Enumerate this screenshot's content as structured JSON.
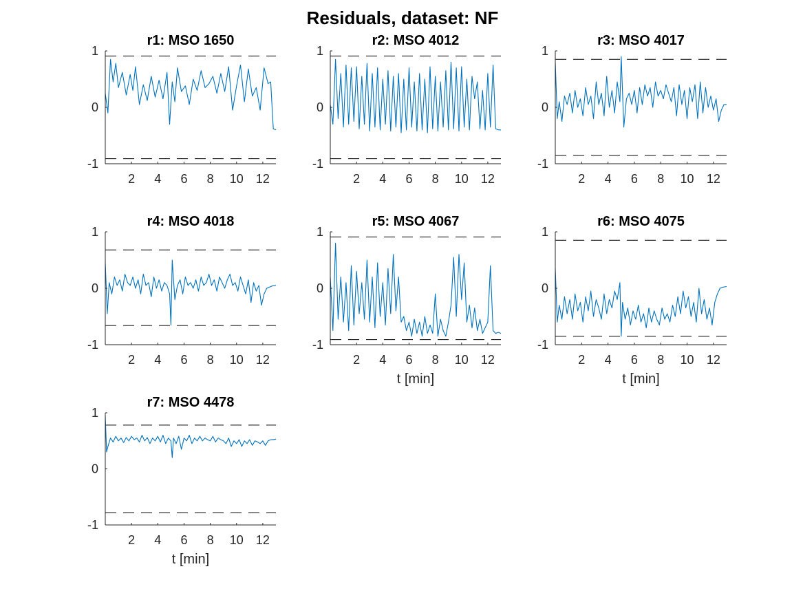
{
  "figure": {
    "title": "Residuals, dataset: NF"
  },
  "chart_data": [
    {
      "type": "line",
      "title": "r1: MSO 1650",
      "xlabel": "",
      "xlim": [
        0,
        13
      ],
      "ylim": [
        -1,
        1
      ],
      "xticks": [
        2,
        4,
        6,
        8,
        10,
        12
      ],
      "yticks": [
        -1,
        0,
        1
      ],
      "thresholds": [
        0.91,
        -0.91
      ],
      "grid": false,
      "series": [
        {
          "color": "#0072bd",
          "x": [
            0,
            0.2,
            0.4,
            0.6,
            0.8,
            1,
            1.3,
            1.6,
            1.9,
            2.1,
            2.3,
            2.6,
            2.9,
            3.2,
            3.5,
            3.8,
            4.1,
            4.4,
            4.7,
            4.9,
            5.1,
            5.3,
            5.5,
            5.8,
            6.1,
            6.4,
            6.7,
            7,
            7.3,
            7.6,
            7.9,
            8.2,
            8.5,
            8.8,
            9.1,
            9.4,
            9.7,
            10,
            10.3,
            10.6,
            10.9,
            11.2,
            11.5,
            11.8,
            12.1,
            12.4,
            12.6,
            12.8,
            13
          ],
          "y": [
            0.25,
            -0.1,
            0.85,
            0.45,
            0.78,
            0.35,
            0.62,
            0.22,
            0.58,
            0.3,
            0.72,
            0.05,
            0.4,
            0.12,
            0.55,
            0.18,
            0.48,
            0.15,
            0.62,
            -0.3,
            0.45,
            0.1,
            0.7,
            0.28,
            0.38,
            0.05,
            0.5,
            0.3,
            0.65,
            0.35,
            0.42,
            0.55,
            0.25,
            0.6,
            0.28,
            0.72,
            -0.05,
            0.38,
            0.75,
            0.1,
            0.68,
            0.2,
            0.35,
            -0.05,
            0.7,
            0.42,
            0.45,
            -0.38,
            -0.4
          ]
        }
      ]
    },
    {
      "type": "line",
      "title": "r2: MSO 4012",
      "xlabel": "",
      "xlim": [
        0,
        13
      ],
      "ylim": [
        -1,
        1
      ],
      "xticks": [
        2,
        4,
        6,
        8,
        10,
        12
      ],
      "yticks": [
        -1,
        0,
        1
      ],
      "thresholds": [
        0.91,
        -0.91
      ],
      "grid": false,
      "series": [
        {
          "color": "#0072bd",
          "x": [
            0,
            0.2,
            0.4,
            0.6,
            0.8,
            1,
            1.2,
            1.4,
            1.6,
            1.8,
            2,
            2.2,
            2.4,
            2.6,
            2.8,
            3,
            3.2,
            3.4,
            3.6,
            3.8,
            4,
            4.2,
            4.4,
            4.6,
            4.8,
            5,
            5.2,
            5.4,
            5.6,
            5.8,
            6,
            6.2,
            6.4,
            6.6,
            6.8,
            7,
            7.2,
            7.4,
            7.6,
            7.8,
            8,
            8.2,
            8.4,
            8.6,
            8.8,
            9,
            9.2,
            9.4,
            9.6,
            9.8,
            10,
            10.2,
            10.4,
            10.6,
            10.8,
            11,
            11.2,
            11.4,
            11.6,
            11.8,
            12,
            12.2,
            12.4,
            12.6,
            12.8,
            13
          ],
          "y": [
            0.05,
            -0.3,
            0.85,
            -0.2,
            0.6,
            -0.35,
            0.75,
            -0.3,
            0.7,
            -0.25,
            0.72,
            -0.38,
            0.55,
            -0.3,
            0.78,
            -0.42,
            0.6,
            -0.35,
            0.7,
            -0.4,
            0.5,
            -0.3,
            0.65,
            -0.42,
            0.55,
            -0.35,
            0.6,
            -0.45,
            0.5,
            -0.4,
            0.7,
            -0.35,
            0.45,
            -0.42,
            0.6,
            -0.4,
            0.5,
            -0.45,
            0.72,
            -0.38,
            0.55,
            -0.42,
            0.45,
            -0.35,
            0.65,
            -0.4,
            0.8,
            -0.38,
            0.7,
            -0.42,
            0.72,
            -0.35,
            0.5,
            -0.4,
            0.55,
            0.15,
            0.45,
            -0.38,
            0.3,
            -0.4,
            0.6,
            -0.35,
            0.75,
            -0.38,
            -0.4,
            -0.4
          ]
        }
      ]
    },
    {
      "type": "line",
      "title": "r3: MSO 4017",
      "xlabel": "",
      "xlim": [
        0,
        13
      ],
      "ylim": [
        -1,
        1
      ],
      "xticks": [
        2,
        4,
        6,
        8,
        10,
        12
      ],
      "yticks": [
        -1,
        0,
        1
      ],
      "thresholds": [
        0.85,
        -0.85
      ],
      "grid": false,
      "series": [
        {
          "color": "#0072bd",
          "x": [
            0,
            0.15,
            0.3,
            0.5,
            0.7,
            0.9,
            1.1,
            1.3,
            1.5,
            1.7,
            1.9,
            2.1,
            2.3,
            2.5,
            2.7,
            2.9,
            3.1,
            3.3,
            3.5,
            3.7,
            3.9,
            4.1,
            4.3,
            4.5,
            4.7,
            4.9,
            5,
            5.2,
            5.4,
            5.6,
            5.8,
            6,
            6.2,
            6.4,
            6.6,
            6.8,
            7,
            7.2,
            7.4,
            7.6,
            7.8,
            8,
            8.2,
            8.4,
            8.6,
            8.8,
            9,
            9.2,
            9.4,
            9.6,
            9.8,
            10,
            10.2,
            10.4,
            10.6,
            10.8,
            11,
            11.2,
            11.4,
            11.6,
            11.8,
            12,
            12.2,
            12.4,
            12.6,
            12.8,
            13
          ],
          "y": [
            0.8,
            -0.2,
            0.1,
            -0.25,
            0.2,
            0.05,
            0.25,
            -0.1,
            0.3,
            0.0,
            0.15,
            -0.15,
            0.35,
            0.05,
            0.2,
            -0.2,
            0.45,
            0.05,
            0.25,
            -0.15,
            0.55,
            0.0,
            0.3,
            -0.1,
            0.45,
            0.1,
            0.9,
            -0.35,
            0.15,
            0.25,
            0.05,
            0.3,
            -0.1,
            0.35,
            0.05,
            0.4,
            0.2,
            0.35,
            0.0,
            0.45,
            0.2,
            0.3,
            0.15,
            0.4,
            0.25,
            0.1,
            0.35,
            -0.15,
            0.4,
            0.05,
            0.3,
            -0.2,
            0.35,
            0.1,
            0.4,
            -0.2,
            0.45,
            -0.1,
            0.35,
            0.0,
            0.2,
            -0.05,
            0.15,
            -0.25,
            -0.05,
            0.05,
            0.05
          ]
        }
      ]
    },
    {
      "type": "line",
      "title": "r4: MSO 4018",
      "xlabel": "",
      "xlim": [
        0,
        13
      ],
      "ylim": [
        -1,
        1
      ],
      "xticks": [
        2,
        4,
        6,
        8,
        10,
        12
      ],
      "yticks": [
        -1,
        0,
        1
      ],
      "thresholds": [
        0.68,
        -0.66
      ],
      "grid": false,
      "series": [
        {
          "color": "#0072bd",
          "x": [
            0,
            0.15,
            0.3,
            0.5,
            0.7,
            0.9,
            1.1,
            1.3,
            1.5,
            1.7,
            1.9,
            2.1,
            2.3,
            2.5,
            2.7,
            2.9,
            3.1,
            3.3,
            3.5,
            3.7,
            3.9,
            4.1,
            4.3,
            4.5,
            4.7,
            4.9,
            5.0,
            5.1,
            5.3,
            5.5,
            5.7,
            5.9,
            6.1,
            6.3,
            6.5,
            6.7,
            6.9,
            7.1,
            7.3,
            7.5,
            7.7,
            7.9,
            8.1,
            8.3,
            8.5,
            8.7,
            8.9,
            9.1,
            9.3,
            9.5,
            9.7,
            9.9,
            10.1,
            10.3,
            10.5,
            10.7,
            10.9,
            11.1,
            11.3,
            11.5,
            11.7,
            11.9,
            12.1,
            12.3,
            12.5,
            12.7,
            13
          ],
          "y": [
            0.45,
            -0.45,
            0.1,
            -0.1,
            0.2,
            0.05,
            0.15,
            -0.05,
            0.25,
            0.1,
            0.05,
            0.2,
            0.0,
            0.15,
            -0.1,
            0.25,
            0.05,
            0.1,
            -0.15,
            0.2,
            0.0,
            0.15,
            -0.05,
            0.1,
            0.05,
            -0.1,
            -0.65,
            0.5,
            -0.2,
            0.05,
            0.15,
            -0.1,
            0.2,
            0.05,
            0.1,
            0.0,
            0.15,
            -0.05,
            0.2,
            0.05,
            0.1,
            0.25,
            0.05,
            0.15,
            -0.05,
            0.2,
            0.1,
            0.0,
            0.15,
            0.25,
            0.05,
            0.1,
            -0.05,
            0.2,
            0.05,
            -0.1,
            0.15,
            -0.25,
            0.1,
            -0.05,
            0.05,
            -0.3,
            -0.1,
            0.0,
            0.02,
            0.04,
            0.05
          ]
        }
      ]
    },
    {
      "type": "line",
      "title": "r5: MSO 4067",
      "xlabel": "t [min]",
      "xlim": [
        0,
        13
      ],
      "ylim": [
        -1,
        1
      ],
      "xticks": [
        2,
        4,
        6,
        8,
        10,
        12
      ],
      "yticks": [
        -1,
        0,
        1
      ],
      "thresholds": [
        0.91,
        -0.91
      ],
      "grid": false,
      "series": [
        {
          "color": "#0072bd",
          "x": [
            0,
            0.2,
            0.4,
            0.6,
            0.8,
            1,
            1.2,
            1.4,
            1.6,
            1.8,
            2,
            2.2,
            2.4,
            2.6,
            2.8,
            3,
            3.2,
            3.4,
            3.6,
            3.8,
            4,
            4.2,
            4.4,
            4.6,
            4.8,
            5,
            5.2,
            5.4,
            5.6,
            5.8,
            6,
            6.2,
            6.4,
            6.6,
            6.8,
            7,
            7.2,
            7.4,
            7.6,
            7.8,
            8,
            8.2,
            8.4,
            8.6,
            8.8,
            9,
            9.2,
            9.4,
            9.6,
            9.8,
            10,
            10.2,
            10.4,
            10.6,
            10.8,
            11,
            11.2,
            11.4,
            11.6,
            11.8,
            12,
            12.2,
            12.4,
            12.6,
            12.8,
            13
          ],
          "y": [
            0.2,
            -0.75,
            0.8,
            -0.55,
            0.2,
            -0.6,
            0.1,
            -0.75,
            0.4,
            -0.65,
            0.3,
            -0.45,
            0.1,
            -0.55,
            0.5,
            -0.6,
            0.2,
            -0.7,
            0.45,
            -0.5,
            0.1,
            -0.65,
            0.35,
            -0.45,
            0.6,
            -0.4,
            0.2,
            -0.6,
            -0.5,
            -0.75,
            -0.6,
            -0.85,
            -0.55,
            -0.8,
            -0.6,
            -0.85,
            -0.5,
            -0.8,
            -0.65,
            -0.8,
            -0.1,
            -0.85,
            -0.55,
            -0.75,
            -0.85,
            -0.6,
            -0.3,
            0.55,
            -0.5,
            0.6,
            -0.2,
            0.45,
            -0.6,
            -0.3,
            -0.7,
            -0.35,
            -0.75,
            -0.55,
            -0.8,
            -0.7,
            -0.6,
            0.4,
            -0.75,
            -0.8,
            -0.78,
            -0.8
          ]
        }
      ]
    },
    {
      "type": "line",
      "title": "r6: MSO 4075",
      "xlabel": "t [min]",
      "xlim": [
        0,
        13
      ],
      "ylim": [
        -1,
        1
      ],
      "xticks": [
        2,
        4,
        6,
        8,
        10,
        12
      ],
      "yticks": [
        -1,
        0,
        1
      ],
      "thresholds": [
        0.85,
        -0.85
      ],
      "grid": false,
      "series": [
        {
          "color": "#0072bd",
          "x": [
            0,
            0.15,
            0.3,
            0.5,
            0.7,
            0.9,
            1.1,
            1.3,
            1.5,
            1.7,
            1.9,
            2.1,
            2.3,
            2.5,
            2.7,
            2.9,
            3.1,
            3.3,
            3.5,
            3.7,
            3.9,
            4.1,
            4.3,
            4.5,
            4.7,
            4.9,
            5.0,
            5.1,
            5.3,
            5.5,
            5.7,
            5.9,
            6.1,
            6.3,
            6.5,
            6.7,
            6.9,
            7.1,
            7.3,
            7.5,
            7.7,
            7.9,
            8.1,
            8.3,
            8.5,
            8.7,
            8.9,
            9.1,
            9.3,
            9.5,
            9.7,
            9.9,
            10.1,
            10.3,
            10.5,
            10.7,
            10.9,
            11.1,
            11.3,
            11.5,
            11.7,
            11.9,
            12.1,
            12.3,
            12.5,
            12.7,
            13
          ],
          "y": [
            0.35,
            -0.6,
            -0.3,
            -0.55,
            -0.15,
            -0.45,
            -0.2,
            -0.55,
            -0.1,
            -0.4,
            -0.25,
            -0.6,
            -0.15,
            -0.4,
            -0.05,
            -0.5,
            -0.2,
            -0.35,
            -0.55,
            -0.1,
            -0.45,
            -0.2,
            -0.35,
            -0.05,
            -0.2,
            0.1,
            -0.85,
            -0.25,
            -0.55,
            -0.35,
            -0.65,
            -0.4,
            -0.55,
            -0.3,
            -0.6,
            -0.45,
            -0.7,
            -0.35,
            -0.6,
            -0.4,
            -0.55,
            -0.65,
            -0.35,
            -0.55,
            -0.45,
            -0.6,
            -0.3,
            -0.5,
            -0.15,
            -0.45,
            -0.05,
            -0.35,
            -0.15,
            -0.5,
            -0.25,
            -0.6,
            0.0,
            -0.45,
            -0.2,
            -0.55,
            -0.35,
            -0.65,
            -0.25,
            -0.1,
            0.0,
            0.02,
            0.03
          ]
        }
      ]
    },
    {
      "type": "line",
      "title": "r7: MSO 4478",
      "xlabel": "t [min]",
      "xlim": [
        0,
        13
      ],
      "ylim": [
        -1,
        1
      ],
      "xticks": [
        2,
        4,
        6,
        8,
        10,
        12
      ],
      "yticks": [
        -1,
        0,
        1
      ],
      "thresholds": [
        0.78,
        -0.78
      ],
      "grid": false,
      "series": [
        {
          "color": "#0072bd",
          "x": [
            0,
            0.1,
            0.2,
            0.4,
            0.6,
            0.8,
            1,
            1.2,
            1.4,
            1.6,
            1.8,
            2,
            2.2,
            2.4,
            2.6,
            2.8,
            3,
            3.2,
            3.4,
            3.6,
            3.8,
            4,
            4.2,
            4.4,
            4.6,
            4.8,
            5,
            5.1,
            5.2,
            5.4,
            5.6,
            5.8,
            6,
            6.2,
            6.4,
            6.6,
            6.8,
            7,
            7.2,
            7.4,
            7.6,
            7.8,
            8,
            8.2,
            8.4,
            8.6,
            8.8,
            9,
            9.2,
            9.4,
            9.6,
            9.8,
            10,
            10.2,
            10.4,
            10.6,
            10.8,
            11,
            11.2,
            11.4,
            11.6,
            11.8,
            12,
            12.2,
            12.4,
            12.6,
            12.8,
            13
          ],
          "y": [
            0.95,
            0.3,
            0.4,
            0.55,
            0.48,
            0.58,
            0.5,
            0.55,
            0.47,
            0.56,
            0.5,
            0.58,
            0.52,
            0.55,
            0.48,
            0.6,
            0.5,
            0.56,
            0.45,
            0.55,
            0.5,
            0.58,
            0.48,
            0.6,
            0.45,
            0.55,
            0.5,
            0.2,
            0.55,
            0.45,
            0.58,
            0.35,
            0.55,
            0.5,
            0.6,
            0.45,
            0.55,
            0.5,
            0.58,
            0.5,
            0.55,
            0.52,
            0.5,
            0.58,
            0.48,
            0.55,
            0.52,
            0.5,
            0.45,
            0.55,
            0.4,
            0.5,
            0.45,
            0.52,
            0.4,
            0.5,
            0.45,
            0.52,
            0.42,
            0.5,
            0.48,
            0.45,
            0.5,
            0.42,
            0.5,
            0.52,
            0.52,
            0.53
          ]
        }
      ]
    }
  ]
}
